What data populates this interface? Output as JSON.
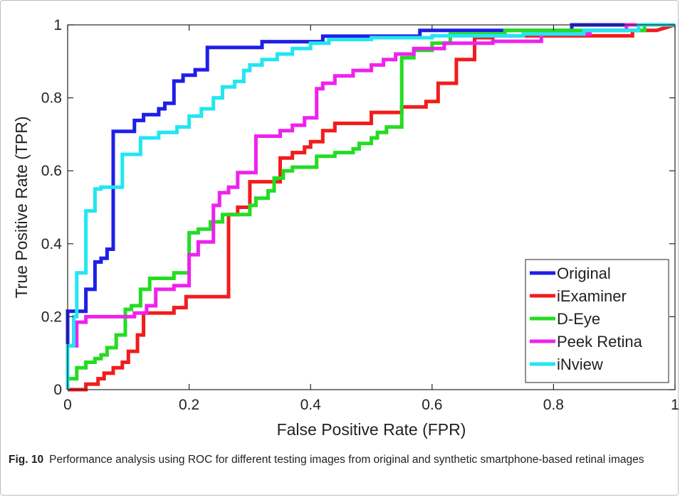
{
  "chart_data": {
    "type": "line",
    "title": "",
    "xlabel": "False Positive Rate (FPR)",
    "ylabel": "True Positive Rate (TPR)",
    "xlim": [
      0,
      1
    ],
    "ylim": [
      0,
      1
    ],
    "xticks": [
      0,
      0.2,
      0.4,
      0.6,
      0.8,
      1
    ],
    "yticks": [
      0,
      0.2,
      0.4,
      0.6,
      0.8,
      1
    ],
    "xtick_labels": [
      "0",
      "0.2",
      "0.4",
      "0.6",
      "0.8",
      "1"
    ],
    "ytick_labels": [
      "0",
      "0.2",
      "0.4",
      "0.6",
      "0.8",
      "1"
    ],
    "grid": false,
    "legend_position": "bottom-right",
    "series": [
      {
        "name": "Original",
        "color": "#1f1fe6",
        "x": [
          0,
          0,
          0.03,
          0.03,
          0.045,
          0.045,
          0.055,
          0.055,
          0.065,
          0.065,
          0.075,
          0.075,
          0.11,
          0.11,
          0.125,
          0.125,
          0.15,
          0.15,
          0.16,
          0.16,
          0.175,
          0.175,
          0.19,
          0.19,
          0.21,
          0.21,
          0.23,
          0.23,
          0.32,
          0.32,
          0.42,
          0.42,
          0.58,
          0.58,
          0.72,
          0.72,
          0.83,
          0.83,
          1
        ],
        "y": [
          0,
          0.215,
          0.215,
          0.275,
          0.275,
          0.35,
          0.35,
          0.36,
          0.36,
          0.385,
          0.385,
          0.708,
          0.708,
          0.738,
          0.738,
          0.754,
          0.754,
          0.77,
          0.77,
          0.785,
          0.785,
          0.846,
          0.846,
          0.862,
          0.862,
          0.877,
          0.877,
          0.938,
          0.938,
          0.954,
          0.954,
          0.969,
          0.969,
          0.985,
          0.985,
          0.985,
          0.985,
          1,
          1
        ]
      },
      {
        "name": "iExaminer",
        "color": "#f21c1c",
        "x": [
          0,
          0,
          0.03,
          0.03,
          0.05,
          0.05,
          0.06,
          0.06,
          0.075,
          0.075,
          0.09,
          0.09,
          0.1,
          0.1,
          0.115,
          0.115,
          0.125,
          0.125,
          0.175,
          0.175,
          0.195,
          0.195,
          0.21,
          0.21,
          0.265,
          0.265,
          0.28,
          0.28,
          0.3,
          0.3,
          0.35,
          0.35,
          0.37,
          0.37,
          0.39,
          0.39,
          0.4,
          0.4,
          0.42,
          0.42,
          0.44,
          0.44,
          0.5,
          0.5,
          0.55,
          0.55,
          0.59,
          0.59,
          0.61,
          0.61,
          0.64,
          0.64,
          0.67,
          0.67,
          0.7,
          0.7,
          0.93,
          0.93,
          0.97,
          0.97,
          1
        ],
        "y": [
          0,
          0,
          0,
          0.015,
          0.015,
          0.03,
          0.03,
          0.045,
          0.045,
          0.06,
          0.06,
          0.075,
          0.075,
          0.105,
          0.105,
          0.15,
          0.15,
          0.21,
          0.21,
          0.225,
          0.225,
          0.255,
          0.255,
          0.255,
          0.255,
          0.48,
          0.48,
          0.5,
          0.5,
          0.57,
          0.57,
          0.635,
          0.635,
          0.65,
          0.65,
          0.665,
          0.665,
          0.68,
          0.68,
          0.71,
          0.71,
          0.73,
          0.73,
          0.76,
          0.76,
          0.775,
          0.775,
          0.79,
          0.79,
          0.84,
          0.84,
          0.905,
          0.905,
          0.965,
          0.965,
          0.97,
          0.97,
          0.985,
          0.985,
          0.985,
          1
        ]
      },
      {
        "name": "D-Eye",
        "color": "#22dd22",
        "x": [
          0,
          0,
          0.015,
          0.015,
          0.03,
          0.03,
          0.045,
          0.045,
          0.055,
          0.055,
          0.065,
          0.065,
          0.08,
          0.08,
          0.095,
          0.095,
          0.105,
          0.105,
          0.12,
          0.12,
          0.135,
          0.135,
          0.175,
          0.175,
          0.2,
          0.2,
          0.215,
          0.215,
          0.235,
          0.235,
          0.255,
          0.255,
          0.28,
          0.28,
          0.3,
          0.3,
          0.31,
          0.31,
          0.33,
          0.33,
          0.34,
          0.34,
          0.355,
          0.355,
          0.37,
          0.37,
          0.41,
          0.41,
          0.44,
          0.44,
          0.47,
          0.47,
          0.48,
          0.48,
          0.5,
          0.5,
          0.51,
          0.51,
          0.525,
          0.525,
          0.55,
          0.55,
          0.57,
          0.57,
          0.6,
          0.6,
          0.63,
          0.63,
          0.72,
          0.72,
          0.84,
          0.84,
          0.95,
          0.95,
          1
        ],
        "y": [
          0,
          0.03,
          0.03,
          0.06,
          0.06,
          0.075,
          0.075,
          0.085,
          0.085,
          0.095,
          0.095,
          0.115,
          0.115,
          0.15,
          0.15,
          0.22,
          0.22,
          0.23,
          0.23,
          0.275,
          0.275,
          0.305,
          0.305,
          0.32,
          0.32,
          0.43,
          0.43,
          0.44,
          0.44,
          0.46,
          0.46,
          0.48,
          0.48,
          0.48,
          0.48,
          0.505,
          0.505,
          0.525,
          0.525,
          0.545,
          0.545,
          0.58,
          0.58,
          0.6,
          0.6,
          0.61,
          0.61,
          0.64,
          0.64,
          0.65,
          0.65,
          0.66,
          0.66,
          0.675,
          0.675,
          0.69,
          0.69,
          0.705,
          0.705,
          0.72,
          0.72,
          0.91,
          0.91,
          0.93,
          0.93,
          0.95,
          0.95,
          0.975,
          0.975,
          0.985,
          0.985,
          0.985,
          0.985,
          1,
          1
        ]
      },
      {
        "name": "Peek Retina",
        "color": "#ee22ee",
        "x": [
          0,
          0,
          0.015,
          0.015,
          0.03,
          0.03,
          0.11,
          0.11,
          0.13,
          0.13,
          0.145,
          0.145,
          0.175,
          0.175,
          0.2,
          0.2,
          0.215,
          0.215,
          0.24,
          0.24,
          0.25,
          0.25,
          0.265,
          0.265,
          0.28,
          0.28,
          0.31,
          0.31,
          0.35,
          0.35,
          0.37,
          0.37,
          0.39,
          0.39,
          0.41,
          0.41,
          0.42,
          0.42,
          0.44,
          0.44,
          0.47,
          0.47,
          0.5,
          0.5,
          0.52,
          0.52,
          0.54,
          0.54,
          0.57,
          0.57,
          0.62,
          0.62,
          0.7,
          0.7,
          0.78,
          0.78,
          0.86,
          0.86,
          0.92,
          0.92,
          1
        ],
        "y": [
          0,
          0.12,
          0.12,
          0.185,
          0.185,
          0.2,
          0.2,
          0.21,
          0.21,
          0.23,
          0.23,
          0.275,
          0.275,
          0.285,
          0.285,
          0.37,
          0.37,
          0.405,
          0.405,
          0.505,
          0.505,
          0.54,
          0.54,
          0.555,
          0.555,
          0.595,
          0.595,
          0.695,
          0.695,
          0.71,
          0.71,
          0.725,
          0.725,
          0.745,
          0.745,
          0.825,
          0.825,
          0.84,
          0.84,
          0.86,
          0.86,
          0.875,
          0.875,
          0.89,
          0.89,
          0.905,
          0.905,
          0.92,
          0.92,
          0.935,
          0.935,
          0.95,
          0.95,
          0.955,
          0.955,
          0.975,
          0.975,
          0.985,
          0.985,
          1,
          1
        ]
      },
      {
        "name": "iNview",
        "color": "#22e6f0",
        "x": [
          0,
          0,
          0.01,
          0.01,
          0.015,
          0.015,
          0.03,
          0.03,
          0.045,
          0.045,
          0.055,
          0.055,
          0.09,
          0.09,
          0.12,
          0.12,
          0.15,
          0.15,
          0.18,
          0.18,
          0.2,
          0.2,
          0.22,
          0.22,
          0.24,
          0.24,
          0.255,
          0.255,
          0.275,
          0.275,
          0.29,
          0.29,
          0.3,
          0.3,
          0.32,
          0.32,
          0.345,
          0.345,
          0.37,
          0.37,
          0.4,
          0.4,
          0.43,
          0.43,
          0.5,
          0.5,
          0.6,
          0.6,
          0.75,
          0.75,
          0.85,
          0.85,
          0.94,
          0.94,
          1
        ],
        "y": [
          0,
          0.12,
          0.12,
          0.2,
          0.2,
          0.32,
          0.32,
          0.49,
          0.49,
          0.55,
          0.55,
          0.555,
          0.555,
          0.645,
          0.645,
          0.69,
          0.69,
          0.705,
          0.705,
          0.72,
          0.72,
          0.75,
          0.75,
          0.77,
          0.77,
          0.8,
          0.8,
          0.83,
          0.83,
          0.845,
          0.845,
          0.875,
          0.875,
          0.89,
          0.89,
          0.905,
          0.905,
          0.92,
          0.92,
          0.935,
          0.935,
          0.95,
          0.95,
          0.96,
          0.96,
          0.965,
          0.965,
          0.97,
          0.97,
          0.975,
          0.975,
          0.985,
          0.985,
          1,
          1
        ]
      }
    ]
  },
  "caption": {
    "label": "Fig. 10",
    "text": "Performance analysis using ROC for different testing images from original and synthetic smartphone-based retinal images"
  }
}
